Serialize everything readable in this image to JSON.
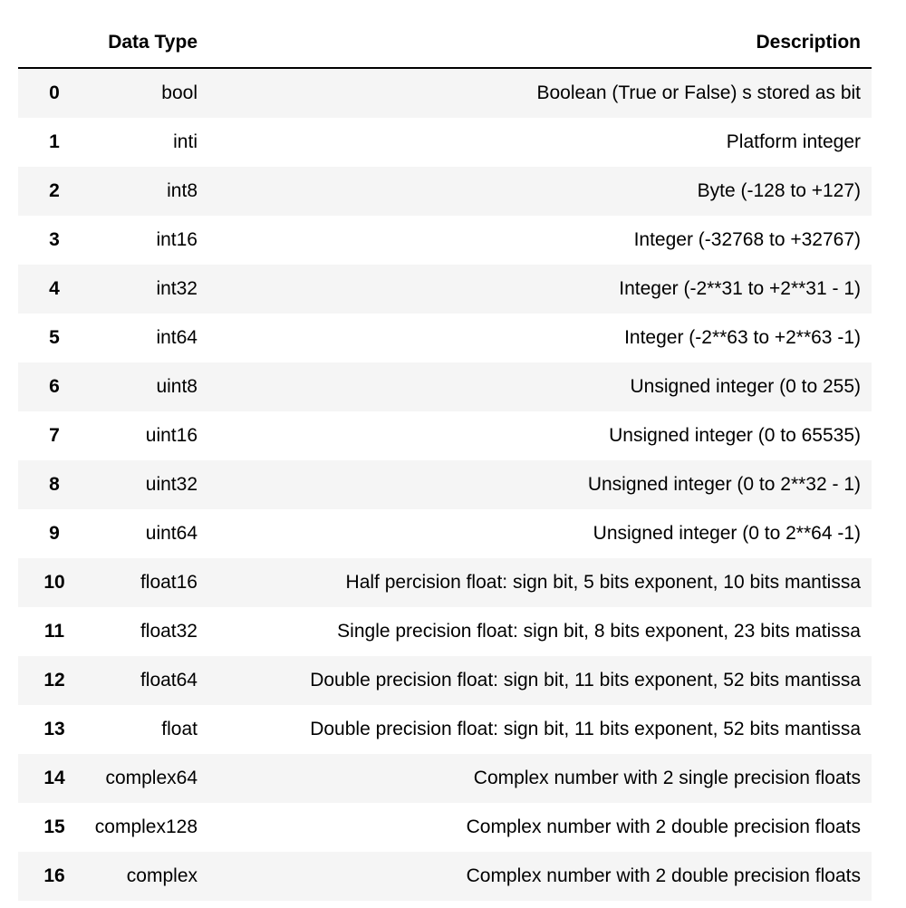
{
  "table": {
    "columns": [
      "",
      "Data Type",
      "Description"
    ],
    "rows": [
      {
        "index": "0",
        "type": "bool",
        "description": "Boolean (True or False) s stored as bit"
      },
      {
        "index": "1",
        "type": "inti",
        "description": "Platform integer"
      },
      {
        "index": "2",
        "type": "int8",
        "description": "Byte (-128 to +127)"
      },
      {
        "index": "3",
        "type": "int16",
        "description": "Integer (-32768 to +32767)"
      },
      {
        "index": "4",
        "type": "int32",
        "description": "Integer (-2**31 to +2**31 - 1)"
      },
      {
        "index": "5",
        "type": "int64",
        "description": "Integer (-2**63 to +2**63 -1)"
      },
      {
        "index": "6",
        "type": "uint8",
        "description": "Unsigned integer (0 to 255)"
      },
      {
        "index": "7",
        "type": "uint16",
        "description": "Unsigned integer (0 to 65535)"
      },
      {
        "index": "8",
        "type": "uint32",
        "description": "Unsigned integer (0 to 2**32 - 1)"
      },
      {
        "index": "9",
        "type": "uint64",
        "description": "Unsigned integer (0 to 2**64 -1)"
      },
      {
        "index": "10",
        "type": "float16",
        "description": "Half percision float: sign bit, 5 bits exponent, 10 bits mantissa"
      },
      {
        "index": "11",
        "type": "float32",
        "description": "Single precision float: sign bit, 8 bits exponent, 23 bits matissa"
      },
      {
        "index": "12",
        "type": "float64",
        "description": "Double precision float: sign bit, 11 bits exponent, 52 bits mantissa"
      },
      {
        "index": "13",
        "type": "float",
        "description": "Double precision float: sign bit, 11 bits exponent, 52 bits mantissa"
      },
      {
        "index": "14",
        "type": "complex64",
        "description": "Complex number with 2 single precision floats"
      },
      {
        "index": "15",
        "type": "complex128",
        "description": "Complex number with 2 double precision floats"
      },
      {
        "index": "16",
        "type": "complex",
        "description": "Complex number with 2 double precision floats"
      }
    ]
  }
}
